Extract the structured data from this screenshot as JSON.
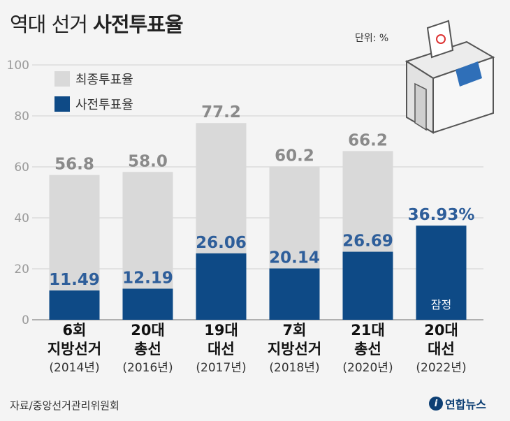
{
  "header": {
    "title_prefix": "역대 선거",
    "title_bold": "사전투표율",
    "unit": "단위: %"
  },
  "legend": {
    "total_label": "최종투표율",
    "early_label": "사전투표율"
  },
  "colors": {
    "total": "#d9d9d9",
    "early": "#0e4a86",
    "total_label": "#8a8a8a",
    "early_label": "#2e5e9a",
    "grid": "#cfcfcf",
    "axis": "#999999"
  },
  "chart_data": {
    "type": "bar",
    "title": "역대 선거 사전투표율",
    "ylim": [
      0,
      100
    ],
    "yticks": [
      0,
      20,
      40,
      60,
      80,
      100
    ],
    "categories": [
      {
        "line1": "6회",
        "line2": "지방선거",
        "line3": "(2014년)"
      },
      {
        "line1": "20대",
        "line2": "총선",
        "line3": "(2016년)"
      },
      {
        "line1": "19대",
        "line2": "대선",
        "line3": "(2017년)"
      },
      {
        "line1": "7회",
        "line2": "지방선거",
        "line3": "(2018년)"
      },
      {
        "line1": "21대",
        "line2": "총선",
        "line3": "(2020년)"
      },
      {
        "line1": "20대",
        "line2": "대선",
        "line3": "(2022년)"
      }
    ],
    "series": [
      {
        "name": "최종투표율",
        "values": [
          56.8,
          58.0,
          77.2,
          60.2,
          66.2,
          null
        ],
        "labels": [
          "56.8",
          "58.0",
          "77.2",
          "60.2",
          "66.2",
          null
        ]
      },
      {
        "name": "사전투표율",
        "values": [
          11.49,
          12.19,
          26.06,
          20.14,
          26.69,
          36.93
        ],
        "labels": [
          "11.49",
          "12.19",
          "26.06",
          "20.14",
          "26.69",
          "36.93%"
        ]
      }
    ],
    "annotations": [
      {
        "category_index": 5,
        "text": "잠정"
      }
    ]
  },
  "footer": {
    "source": "자료/중앙선거관리위원회",
    "brand": "연합뉴스",
    "brand_mark": "i"
  }
}
